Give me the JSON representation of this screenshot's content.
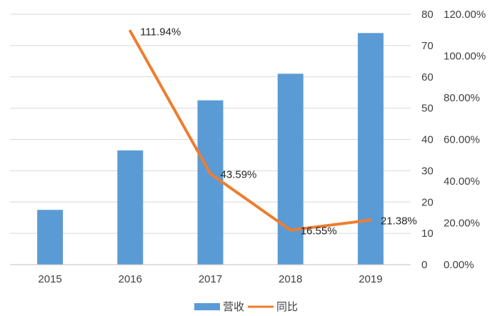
{
  "chart_data": {
    "type": "bar",
    "categories": [
      "2015",
      "2016",
      "2017",
      "2018",
      "2019"
    ],
    "series": [
      {
        "name": "营收",
        "type": "bar",
        "axis": "left",
        "color": "#5B9BD5",
        "values": [
          17.5,
          36.5,
          52.5,
          61,
          74
        ]
      },
      {
        "name": "同比",
        "type": "line",
        "axis": "right",
        "color": "#ED7D31",
        "values": [
          null,
          1.1194,
          0.4359,
          0.1655,
          0.2138
        ],
        "labels": [
          null,
          "111.94%",
          "43.59%",
          "16.55%",
          "21.38%"
        ]
      }
    ],
    "y_left": {
      "ylim": [
        0,
        80
      ],
      "ticks": [
        "0",
        "10",
        "20",
        "30",
        "40",
        "50",
        "60",
        "70",
        "80"
      ]
    },
    "y_right": {
      "ylim": [
        0,
        1.2
      ],
      "ticks": [
        "0.00%",
        "20.00%",
        "40.00%",
        "60.00%",
        "80.00%",
        "100.00%",
        "120.00%"
      ]
    },
    "grid": true,
    "legend_position": "bottom-center"
  }
}
